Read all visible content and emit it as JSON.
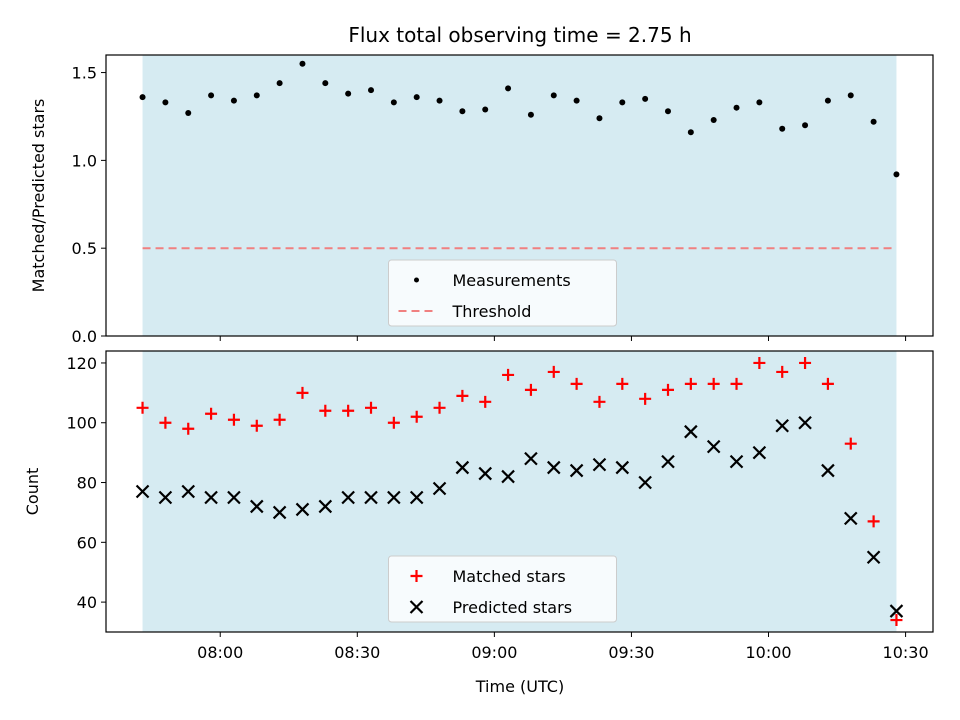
{
  "chart_data": {
    "title": "Flux total observing time = 2.75 h",
    "xlabel": "Time (UTC)",
    "x_ticks": [
      "08:00",
      "08:30",
      "09:00",
      "09:30",
      "10:00",
      "10:30"
    ],
    "x_tick_values": [
      "08:00",
      "08:30",
      "09:00",
      "09:30",
      "10:00",
      "10:30"
    ],
    "x_range": [
      "07:35",
      "10:36"
    ],
    "shaded_span": [
      "07:43",
      "10:28"
    ],
    "colors": {
      "shade": "#add8e6",
      "matched": "#ff0000",
      "predicted": "#000000",
      "threshold": "#f08080",
      "measurement": "#000000"
    },
    "panels": [
      {
        "type": "scatter",
        "ylabel": "Matched/Predicted stars",
        "ylim": [
          0,
          1.6
        ],
        "yticks": [
          "0.0",
          "0.5",
          "1.0",
          "1.5"
        ],
        "ytick_values": [
          0,
          0.5,
          1.0,
          1.5
        ],
        "legend": {
          "placement": "lower center",
          "entries": [
            "Measurements",
            "Threshold"
          ]
        },
        "series": [
          {
            "name": "Measurements",
            "marker": "dot",
            "x": [
              "07:43",
              "07:48",
              "07:53",
              "07:58",
              "08:03",
              "08:08",
              "08:13",
              "08:18",
              "08:23",
              "08:28",
              "08:33",
              "08:38",
              "08:43",
              "08:48",
              "08:53",
              "08:58",
              "09:03",
              "09:08",
              "09:13",
              "09:18",
              "09:23",
              "09:28",
              "09:33",
              "09:38",
              "09:43",
              "09:48",
              "09:53",
              "09:58",
              "10:03",
              "10:08",
              "10:13",
              "10:18",
              "10:23",
              "10:28"
            ],
            "y": [
              1.36,
              1.33,
              1.27,
              1.37,
              1.34,
              1.37,
              1.44,
              1.55,
              1.44,
              1.38,
              1.4,
              1.33,
              1.36,
              1.34,
              1.28,
              1.29,
              1.41,
              1.26,
              1.37,
              1.34,
              1.24,
              1.33,
              1.35,
              1.28,
              1.16,
              1.23,
              1.3,
              1.33,
              1.18,
              1.2,
              1.34,
              1.37,
              1.22,
              0.92
            ]
          },
          {
            "name": "Threshold",
            "marker": "dashed-line",
            "y": 0.5
          }
        ]
      },
      {
        "type": "scatter",
        "ylabel": "Count",
        "ylim": [
          30,
          124
        ],
        "yticks": [
          "40",
          "60",
          "80",
          "100",
          "120"
        ],
        "ytick_values": [
          40,
          60,
          80,
          100,
          120
        ],
        "legend": {
          "placement": "lower center",
          "entries": [
            "Matched stars",
            "Predicted stars"
          ]
        },
        "series": [
          {
            "name": "Matched stars",
            "marker": "plus",
            "x": [
              "07:43",
              "07:48",
              "07:53",
              "07:58",
              "08:03",
              "08:08",
              "08:13",
              "08:18",
              "08:23",
              "08:28",
              "08:33",
              "08:38",
              "08:43",
              "08:48",
              "08:53",
              "08:58",
              "09:03",
              "09:08",
              "09:13",
              "09:18",
              "09:23",
              "09:28",
              "09:33",
              "09:38",
              "09:43",
              "09:48",
              "09:53",
              "09:58",
              "10:03",
              "10:08",
              "10:13",
              "10:18",
              "10:23",
              "10:28"
            ],
            "y": [
              105,
              100,
              98,
              103,
              101,
              99,
              101,
              110,
              104,
              104,
              105,
              100,
              102,
              105,
              109,
              107,
              116,
              111,
              117,
              113,
              107,
              113,
              108,
              111,
              113,
              113,
              113,
              120,
              117,
              120,
              113,
              93,
              67,
              34
            ]
          },
          {
            "name": "Predicted stars",
            "marker": "x",
            "x": [
              "07:43",
              "07:48",
              "07:53",
              "07:58",
              "08:03",
              "08:08",
              "08:13",
              "08:18",
              "08:23",
              "08:28",
              "08:33",
              "08:38",
              "08:43",
              "08:48",
              "08:53",
              "08:58",
              "09:03",
              "09:08",
              "09:13",
              "09:18",
              "09:23",
              "09:28",
              "09:33",
              "09:38",
              "09:43",
              "09:48",
              "09:53",
              "09:58",
              "10:03",
              "10:08",
              "10:13",
              "10:18",
              "10:23",
              "10:28"
            ],
            "y": [
              77,
              75,
              77,
              75,
              75,
              72,
              70,
              71,
              72,
              75,
              75,
              75,
              75,
              78,
              85,
              83,
              82,
              88,
              85,
              84,
              86,
              85,
              80,
              87,
              97,
              92,
              87,
              90,
              99,
              100,
              84,
              68,
              55,
              37
            ]
          }
        ]
      }
    ]
  }
}
